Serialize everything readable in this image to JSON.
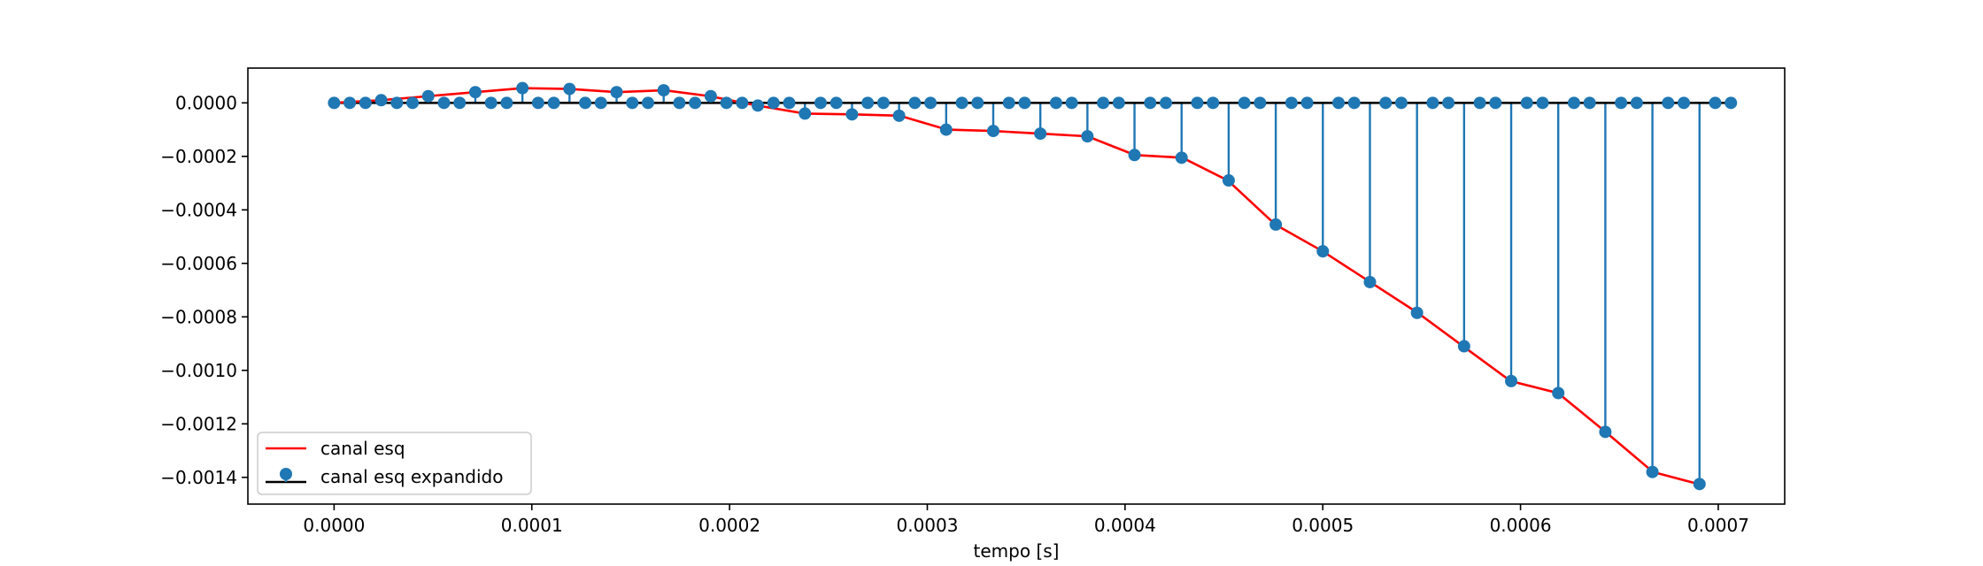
{
  "chart_data": {
    "type": "line",
    "xlabel": "tempo [s]",
    "ylabel": "",
    "title": "",
    "xlim": [
      -4.36e-05,
      0.0007336
    ],
    "ylim": [
      -0.0015,
      0.00013
    ],
    "grid": false,
    "legend_placement": "lower-left",
    "x_ticks": [
      0.0,
      0.0001,
      0.0002,
      0.0003,
      0.0004,
      0.0005,
      0.0006,
      0.0007
    ],
    "x_tick_labels": [
      "0.0000",
      "0.0001",
      "0.0002",
      "0.0003",
      "0.0004",
      "0.0005",
      "0.0006",
      "0.0007"
    ],
    "y_ticks": [
      0.0,
      -0.0002,
      -0.0004,
      -0.0006,
      -0.0008,
      -0.001,
      -0.0012,
      -0.0014
    ],
    "y_tick_labels": [
      "0.0000",
      "−0.0002",
      "−0.0004",
      "−0.0006",
      "−0.0008",
      "−0.0010",
      "−0.0012",
      "−0.0014"
    ],
    "sample_step": 7.937e-06,
    "series": [
      {
        "name": "canal esq",
        "kind": "line",
        "color": "#ff0000",
        "x": [
          0.0,
          2.38e-05,
          4.76e-05,
          7.14e-05,
          9.52e-05,
          0.000119,
          0.000143,
          0.000167,
          0.00019,
          0.000214,
          0.000238,
          0.000262,
          0.000286,
          0.00031,
          0.000333,
          0.000357,
          0.000381,
          0.000405,
          0.000429,
          0.000452,
          0.000476,
          0.0005,
          0.000524,
          0.000548,
          0.000571,
          0.000595,
          0.000619,
          0.000643,
          0.000667,
          0.00069
        ],
        "y": [
          0.0,
          1e-05,
          2.5e-05,
          4e-05,
          5.5e-05,
          5.2e-05,
          4e-05,
          4.7e-05,
          2.5e-05,
          -1e-05,
          -4e-05,
          -4.3e-05,
          -4.8e-05,
          -0.0001,
          -0.000105,
          -0.000115,
          -0.000125,
          -0.000195,
          -0.000205,
          -0.00029,
          -0.000455,
          -0.000555,
          -0.00067,
          -0.000785,
          -0.00091,
          -0.00104,
          -0.001085,
          -0.00123,
          -0.00138,
          -0.001425
        ]
      },
      {
        "name": "canal esq expandido",
        "kind": "stem",
        "marker_color": "#1f77b4",
        "baseline_color": "#000000",
        "n_samples": 90,
        "nonzero_every": 3,
        "nonzero_values": [
          0.0,
          1e-05,
          2.5e-05,
          4e-05,
          5.5e-05,
          5.2e-05,
          4e-05,
          4.7e-05,
          2.5e-05,
          -1e-05,
          -4e-05,
          -4.3e-05,
          -4.8e-05,
          -0.0001,
          -0.000105,
          -0.000115,
          -0.000125,
          -0.000195,
          -0.000205,
          -0.00029,
          -0.000455,
          -0.000555,
          -0.00067,
          -0.000785,
          -0.00091,
          -0.00104,
          -0.001085,
          -0.00123,
          -0.00138,
          -0.001425
        ]
      }
    ]
  }
}
